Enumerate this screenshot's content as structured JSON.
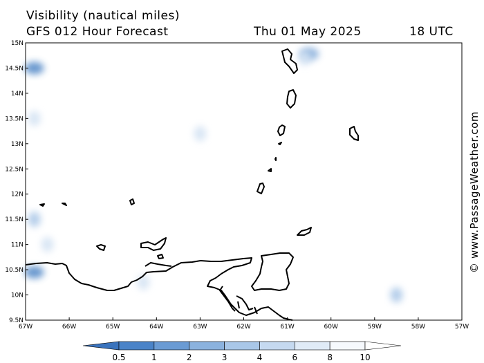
{
  "header": {
    "title": "Visibility (nautical miles)",
    "subtitle": "GFS 012 Hour Forecast",
    "date": "Thu 01 May 2025",
    "time": "18 UTC"
  },
  "credit": "© www.PassageWeather.com",
  "map": {
    "lon_range": [
      -67,
      -57
    ],
    "lat_range": [
      9.5,
      15
    ],
    "x_ticks": [
      "67W",
      "66W",
      "65W",
      "64W",
      "63W",
      "62W",
      "61W",
      "60W",
      "59W",
      "58W",
      "57W"
    ],
    "y_ticks": [
      "15N",
      "14.5N",
      "14N",
      "13.5N",
      "13N",
      "12.5N",
      "12N",
      "11.5N",
      "11N",
      "10.5N",
      "10N",
      "9.5N"
    ],
    "low_visibility_patches": [
      {
        "lon": -66.8,
        "lat": 14.5,
        "level": 3
      },
      {
        "lon": -60.5,
        "lat": 14.78,
        "level": 4
      },
      {
        "lon": -60.6,
        "lat": 14.7,
        "level": 8
      },
      {
        "lon": -66.8,
        "lat": 13.5,
        "level": 8
      },
      {
        "lon": -63.0,
        "lat": 13.2,
        "level": 8
      },
      {
        "lon": -66.8,
        "lat": 11.5,
        "level": 6
      },
      {
        "lon": -66.5,
        "lat": 11.0,
        "level": 8
      },
      {
        "lon": -66.8,
        "lat": 10.45,
        "level": 3
      },
      {
        "lon": -64.3,
        "lat": 10.25,
        "level": 8
      },
      {
        "lon": -58.5,
        "lat": 10.0,
        "level": 6
      }
    ]
  },
  "colorbar": {
    "labels": [
      "0.5",
      "1",
      "2",
      "3",
      "4",
      "6",
      "8",
      "10"
    ],
    "colors": [
      "#3a73bd",
      "#4a83c8",
      "#6a9bd4",
      "#8bb2de",
      "#a9c7e8",
      "#c5d9f0",
      "#e0ebf7",
      "#f6f9fd",
      "#ffffff"
    ]
  }
}
